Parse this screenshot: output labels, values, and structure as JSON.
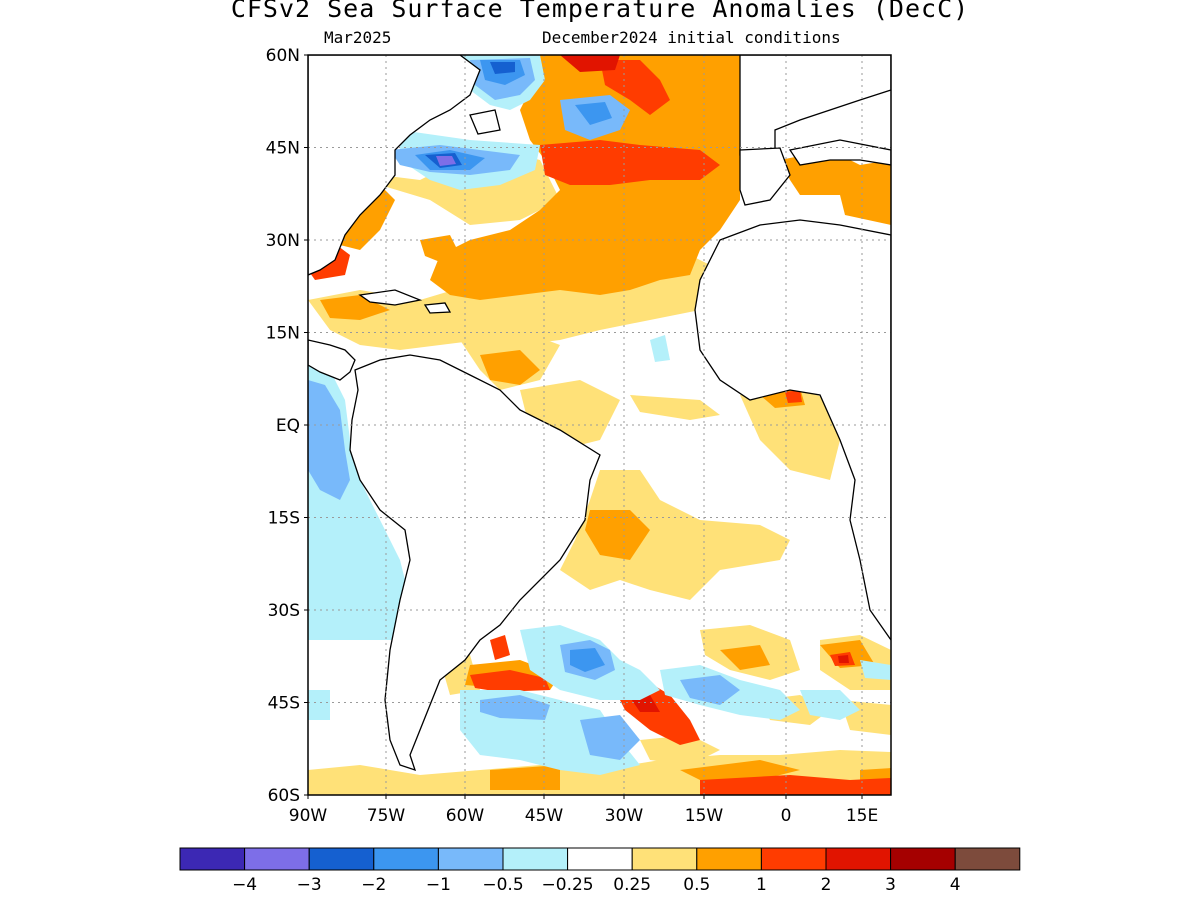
{
  "title": "CFSv2 Sea Surface Temperature Anomalies (DecC)",
  "subtitle_left": "Mar2025",
  "subtitle_right": "December2024 initial conditions",
  "lat_labels": [
    "60N",
    "45N",
    "30N",
    "15N",
    "EQ",
    "15S",
    "30S",
    "45S",
    "60S"
  ],
  "lon_labels": [
    "90W",
    "75W",
    "60W",
    "45W",
    "30W",
    "15W",
    "0",
    "15E"
  ],
  "legend": {
    "colors": [
      "#3c28b4",
      "#7d6ee8",
      "#1560d0",
      "#3c96f0",
      "#78b9fa",
      "#b4f0fa",
      "#ffffff",
      "#ffe178",
      "#ffa000",
      "#ff3c00",
      "#e11400",
      "#a50000",
      "#7d4b3c"
    ],
    "labels": [
      "−4",
      "−3",
      "−2",
      "−1",
      "−0.5",
      "−0.25",
      "0.25",
      "0.5",
      "1",
      "2",
      "3",
      "4"
    ]
  },
  "palette": {
    "land": "#ffffff",
    "coast": "#000000",
    "grid": "#9a9a9a"
  }
}
